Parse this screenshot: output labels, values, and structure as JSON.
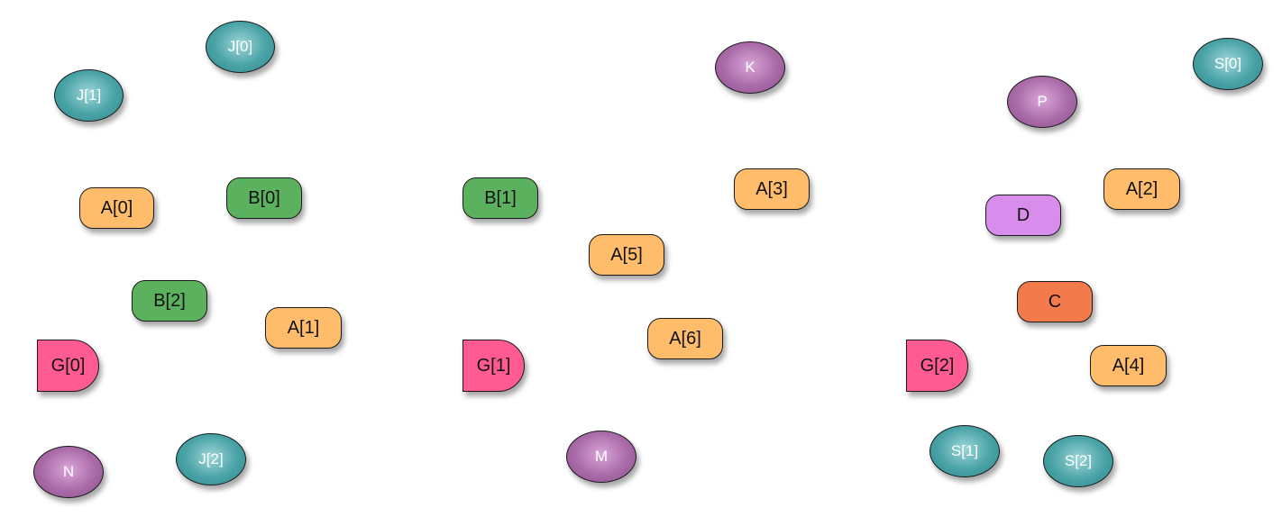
{
  "nodes": [
    {
      "id": "J0",
      "label": "J[0]",
      "kind": "teal-ellipse"
    },
    {
      "id": "J1",
      "label": "J[1]",
      "kind": "teal-ellipse"
    },
    {
      "id": "J2",
      "label": "J[2]",
      "kind": "teal-ellipse"
    },
    {
      "id": "N",
      "label": "N",
      "kind": "purple-ellipse"
    },
    {
      "id": "A0",
      "label": "A[0]",
      "kind": "orange-pill"
    },
    {
      "id": "B0",
      "label": "B[0]",
      "kind": "green-pill"
    },
    {
      "id": "B2",
      "label": "B[2]",
      "kind": "green-pill"
    },
    {
      "id": "A1",
      "label": "A[1]",
      "kind": "orange-pill"
    },
    {
      "id": "G0",
      "label": "G[0]",
      "kind": "pink-dee"
    },
    {
      "id": "B1",
      "label": "B[1]",
      "kind": "green-pill"
    },
    {
      "id": "K",
      "label": "K",
      "kind": "purple-ellipse"
    },
    {
      "id": "A3",
      "label": "A[3]",
      "kind": "orange-pill"
    },
    {
      "id": "A5",
      "label": "A[5]",
      "kind": "orange-pill"
    },
    {
      "id": "A6",
      "label": "A[6]",
      "kind": "orange-pill"
    },
    {
      "id": "G1",
      "label": "G[1]",
      "kind": "pink-dee"
    },
    {
      "id": "M",
      "label": "M",
      "kind": "purple-ellipse"
    },
    {
      "id": "S0",
      "label": "S[0]",
      "kind": "teal-ellipse"
    },
    {
      "id": "P",
      "label": "P",
      "kind": "purple-ellipse"
    },
    {
      "id": "A2",
      "label": "A[2]",
      "kind": "orange-pill"
    },
    {
      "id": "D",
      "label": "D",
      "kind": "lilac-pill"
    },
    {
      "id": "C",
      "label": "C",
      "kind": "coral-pill"
    },
    {
      "id": "A4",
      "label": "A[4]",
      "kind": "orange-pill"
    },
    {
      "id": "G2",
      "label": "G[2]",
      "kind": "pink-dee"
    },
    {
      "id": "S1",
      "label": "S[1]",
      "kind": "teal-ellipse"
    },
    {
      "id": "S2",
      "label": "S[2]",
      "kind": "teal-ellipse"
    }
  ]
}
